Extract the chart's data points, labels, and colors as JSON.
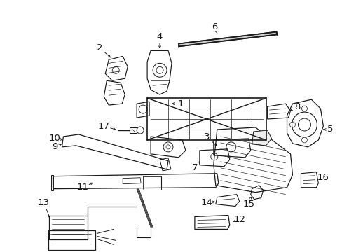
{
  "background_color": "#ffffff",
  "figure_width": 4.89,
  "figure_height": 3.6,
  "dpi": 100,
  "gray": "#1a1a1a",
  "label_fontsize": 9.5,
  "label_color": "#1a1a1a"
}
